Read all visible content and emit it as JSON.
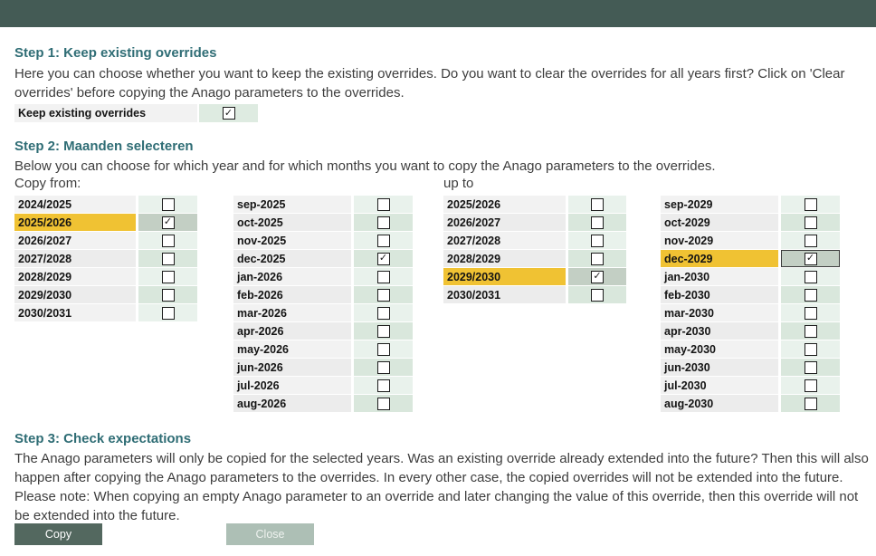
{
  "colors": {
    "topbar": "#445B55",
    "heading": "#2F6D75",
    "row_highlight": "#F0C233",
    "copy_button_bg": "#53685F",
    "close_button_bg": "#ADBFB5"
  },
  "step1": {
    "title": "Step 1: Keep existing overrides",
    "body": "Here you can choose whether you want to keep the existing overrides. Do you want to clear the overrides for all years first? Click on 'Clear overrides' before copying the Anago parameters to the overrides.",
    "keep_label": "Keep existing overrides",
    "keep_checked": true
  },
  "step2": {
    "title": "Step 2: Maanden selecteren",
    "body": "Below you can choose for which year and for which months you want to copy the Anago parameters to the overrides.",
    "copy_from_label": "Copy from:",
    "up_to_label": "up to",
    "copy_from_years": [
      {
        "label": "2024/2025",
        "checked": false
      },
      {
        "label": "2025/2026",
        "checked": true,
        "highlighted": true
      },
      {
        "label": "2026/2027",
        "checked": false
      },
      {
        "label": "2027/2028",
        "checked": false
      },
      {
        "label": "2028/2029",
        "checked": false
      },
      {
        "label": "2029/2030",
        "checked": false
      },
      {
        "label": "2030/2031",
        "checked": false
      }
    ],
    "copy_from_months": [
      {
        "label": "sep-2025",
        "checked": false
      },
      {
        "label": "oct-2025",
        "checked": false
      },
      {
        "label": "nov-2025",
        "checked": false
      },
      {
        "label": "dec-2025",
        "checked": true
      },
      {
        "label": "jan-2026",
        "checked": false
      },
      {
        "label": "feb-2026",
        "checked": false
      },
      {
        "label": "mar-2026",
        "checked": false
      },
      {
        "label": "apr-2026",
        "checked": false
      },
      {
        "label": "may-2026",
        "checked": false
      },
      {
        "label": "jun-2026",
        "checked": false
      },
      {
        "label": "jul-2026",
        "checked": false
      },
      {
        "label": "aug-2026",
        "checked": false
      }
    ],
    "up_to_years": [
      {
        "label": "2025/2026",
        "checked": false
      },
      {
        "label": "2026/2027",
        "checked": false
      },
      {
        "label": "2027/2028",
        "checked": false
      },
      {
        "label": "2028/2029",
        "checked": false
      },
      {
        "label": "2029/2030",
        "checked": true,
        "highlighted": true
      },
      {
        "label": "2030/2031",
        "checked": false
      }
    ],
    "up_to_months": [
      {
        "label": "sep-2029",
        "checked": false
      },
      {
        "label": "oct-2029",
        "checked": false
      },
      {
        "label": "nov-2029",
        "checked": false
      },
      {
        "label": "dec-2029",
        "checked": true,
        "highlighted": true,
        "focused": true
      },
      {
        "label": "jan-2030",
        "checked": false
      },
      {
        "label": "feb-2030",
        "checked": false
      },
      {
        "label": "mar-2030",
        "checked": false
      },
      {
        "label": "apr-2030",
        "checked": false
      },
      {
        "label": "may-2030",
        "checked": false
      },
      {
        "label": "jun-2030",
        "checked": false
      },
      {
        "label": "jul-2030",
        "checked": false
      },
      {
        "label": "aug-2030",
        "checked": false
      }
    ]
  },
  "step3": {
    "title": "Step 3: Check expectations",
    "body": "The Anago parameters will only be copied for the selected years. Was an existing override already extended into the future? Then this will also happen after copying the Anago parameters to the overrides. In every other case, the copied overrides will not be extended into the future. Please note: When copying an empty Anago parameter to an override and later changing the value of this override, then this override will not be extended into the future.",
    "copy_button_label": "Copy",
    "close_button_label": "Close"
  }
}
